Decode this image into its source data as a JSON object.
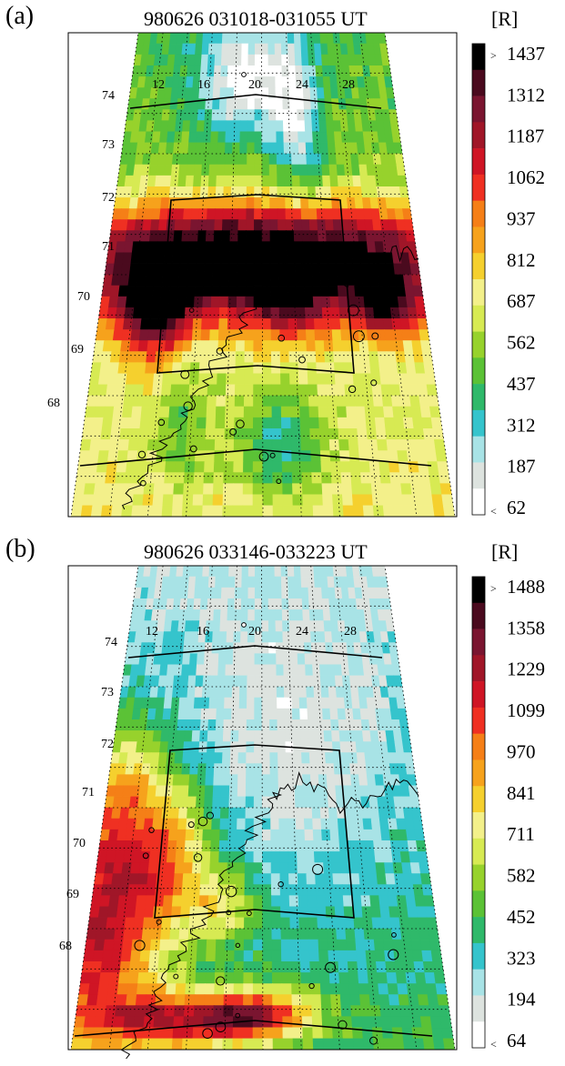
{
  "panels": [
    {
      "letter": "(a)",
      "title": "980626   031018-031055 UT",
      "unit": "[R]",
      "lat_labels": [
        "74",
        "73",
        "72",
        "71",
        "70",
        "69",
        "68"
      ],
      "lon_labels": [
        "12",
        "16",
        "20",
        "24",
        "28"
      ],
      "colorbar": {
        "ticks": [
          "1437",
          "1312",
          "1187",
          "1062",
          "937",
          "812",
          "687",
          "562",
          "437",
          "312",
          "187",
          "62"
        ],
        "over_marker": ">",
        "under_marker": "<"
      }
    },
    {
      "letter": "(b)",
      "title": "980626   033146-033223 UT",
      "unit": "[R]",
      "lat_labels": [
        "74",
        "73",
        "72",
        "71",
        "70",
        "69",
        "68"
      ],
      "lon_labels": [
        "12",
        "16",
        "20",
        "24",
        "28"
      ],
      "colorbar": {
        "ticks": [
          "1488",
          "1358",
          "1229",
          "1099",
          "970",
          "841",
          "711",
          "582",
          "452",
          "323",
          "194",
          "64"
        ],
        "over_marker": ">",
        "under_marker": "<"
      }
    }
  ],
  "colors": {
    "colormap": [
      "#ffffff",
      "#dde3df",
      "#a8e3e6",
      "#35c4cc",
      "#2fb96a",
      "#5bc236",
      "#97d22c",
      "#d7ea53",
      "#f3f08a",
      "#f5d02e",
      "#f6a21c",
      "#f57f17",
      "#ef3022",
      "#cf1525",
      "#a01628",
      "#7a1530",
      "#4a0a1e",
      "#000000"
    ]
  },
  "chart_data": [
    {
      "type": "heatmap",
      "title": "980626   031018-031055 UT",
      "unit": "[R]",
      "colorbar_ticks": [
        1437,
        1312,
        1187,
        1062,
        937,
        812,
        687,
        562,
        437,
        312,
        187,
        62
      ],
      "value_range": [
        62,
        1437
      ],
      "latitude_labels": [
        74,
        73,
        72,
        71,
        70,
        69,
        68
      ],
      "longitude_labels": [
        12,
        16,
        20,
        24,
        28
      ],
      "grid": true
    },
    {
      "type": "heatmap",
      "title": "980626   033146-033223 UT",
      "unit": "[R]",
      "colorbar_ticks": [
        1488,
        1358,
        1229,
        1099,
        970,
        841,
        711,
        582,
        452,
        323,
        194,
        64
      ],
      "value_range": [
        64,
        1488
      ],
      "latitude_labels": [
        74,
        73,
        72,
        71,
        70,
        69,
        68
      ],
      "longitude_labels": [
        12,
        16,
        20,
        24,
        28
      ],
      "grid": true
    }
  ]
}
